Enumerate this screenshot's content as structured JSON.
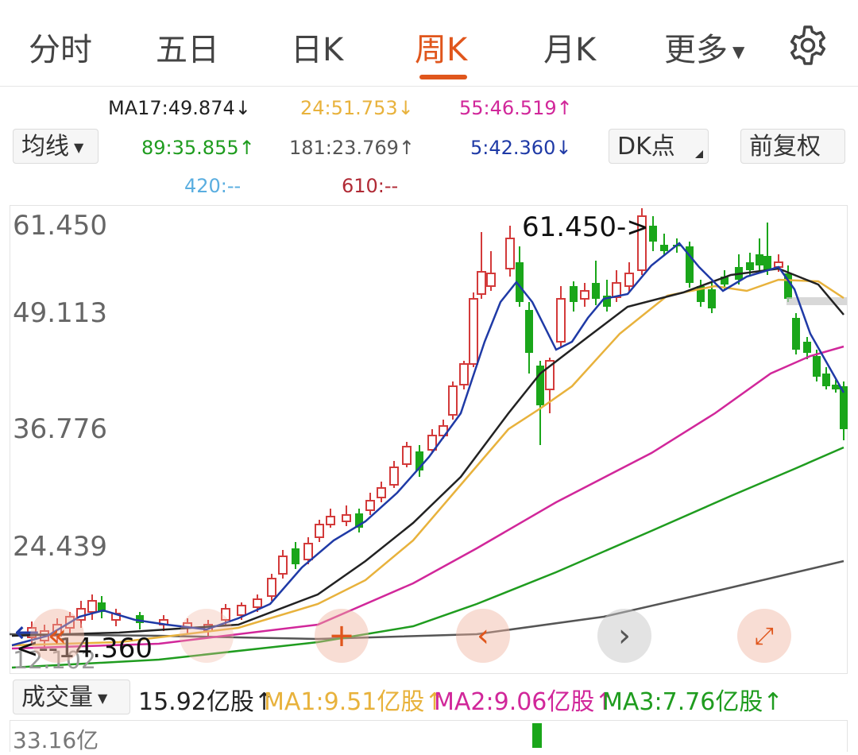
{
  "tabs": [
    {
      "label": "分时",
      "active": false
    },
    {
      "label": "五日",
      "active": false
    },
    {
      "label": "日K",
      "active": false
    },
    {
      "label": "周K",
      "active": true
    },
    {
      "label": "月K",
      "active": false
    },
    {
      "label": "更多",
      "active": false
    }
  ],
  "settings_icon": "gear-icon",
  "ma_legend": {
    "ma17": "MA17:49.874↓",
    "ma24": "24:51.753↓",
    "ma55": "55:46.519↑",
    "ma89": "89:35.855↑",
    "ma181": "181:23.769↑",
    "ma5": "5:42.360↓",
    "ma420": "420:--",
    "ma610": "610:--"
  },
  "controls": {
    "ma_select": "均线",
    "dk_button": "DK点",
    "adjust_button": "前复权"
  },
  "colors": {
    "accent": "#e0561c",
    "up_candle": "#d33a3a",
    "down_candle": "#1aa61a",
    "ma5": "#1f3aa6",
    "ma17": "#222222",
    "ma24": "#e8b23c",
    "ma55": "#d1279a",
    "ma89": "#1f9c1f",
    "ma181": "#555555",
    "ma420": "#5aaee0",
    "ma610": "#b02a35"
  },
  "price_chart": {
    "y_labels": [
      "61.450",
      "49.113",
      "36.776",
      "24.439",
      "12.102"
    ],
    "high_marker": "61.450->",
    "low_marker": "<--14.360"
  },
  "chart_controls": {
    "zoom_out_icon": "double-chevron-left-icon",
    "zoom_in_icon": "plus-icon",
    "prev_icon": "chevron-left-icon",
    "next_icon": "chevron-right-icon",
    "fullscreen_icon": "expand-icon"
  },
  "volume": {
    "select": "成交量",
    "current": "15.92亿股↑",
    "ma1": "MA1:9.51亿股↑",
    "ma2": "MA2:9.06亿股↑",
    "ma3": "MA3:7.76亿股↑",
    "axis_label": "33.16亿"
  },
  "chart_data": {
    "type": "candlestick",
    "y_ticks": [
      61.45,
      49.113,
      36.776,
      24.439,
      12.102
    ],
    "ylim": [
      12.102,
      61.45
    ],
    "high": 61.45,
    "low": 14.36
  }
}
